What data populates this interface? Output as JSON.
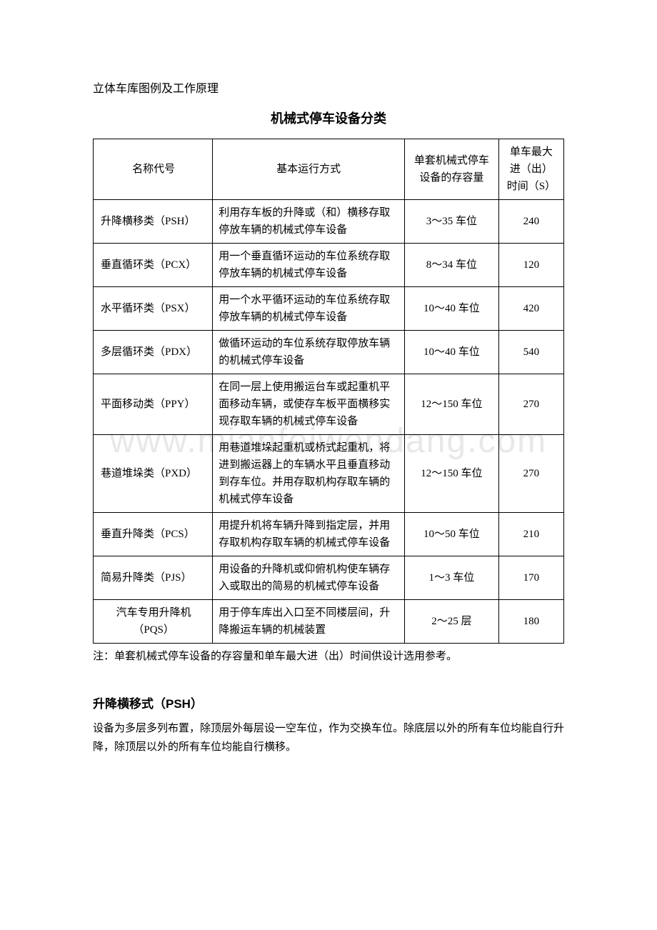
{
  "header": "立体车库图例及工作原理",
  "title": "机械式停车设备分类",
  "table": {
    "headers": {
      "name": "名称代号",
      "method": "基本运行方式",
      "capacity": "单套机械式停车设备的存容量",
      "time": "单车最大进（出）时间（S）"
    },
    "rows": [
      {
        "name": "升降横移类（PSH）",
        "method": "利用存车板的升降或（和）横移存取停放车辆的机械式停车设备",
        "capacity": "3～35 车位",
        "time": "240"
      },
      {
        "name": "垂直循环类（PCX）",
        "method": "用一个垂直循环运动的车位系统存取停放车辆的机械式停车设备",
        "capacity": "8～34 车位",
        "time": "120"
      },
      {
        "name": "水平循环类（PSX）",
        "method": "用一个水平循环运动的车位系统存取停放车辆的机械式停车设备",
        "capacity": "10～40 车位",
        "time": "420"
      },
      {
        "name": "多层循环类（PDX）",
        "method": "做循环运动的车位系统存取停放车辆的机械式停车设备",
        "capacity": "10～40 车位",
        "time": "540"
      },
      {
        "name": "平面移动类（PPY）",
        "method": "在同一层上使用搬运台车或起重机平面移动车辆，或使存车板平面横移实现存取车辆的机械式停车设备",
        "capacity": "12～150 车位",
        "time": "270"
      },
      {
        "name": "巷道堆垛类（PXD）",
        "method": "用巷道堆垛起重机或桥式起重机，将进到搬运器上的车辆水平且垂直移动到存车位。并用存取机构存取车辆的机械式停车设备",
        "capacity": "12～150 车位",
        "time": "270"
      },
      {
        "name": "垂直升降类（PCS）",
        "method": "用提升机将车辆升降到指定层，并用存取机构存取车辆的机械式停车设备",
        "capacity": "10～50 车位",
        "time": "210"
      },
      {
        "name": "简易升降类（PJS）",
        "method": "用设备的升降机或仰俯机构使车辆存入或取出的简易的机械式停车设备",
        "capacity": "1～3 车位",
        "time": "170"
      },
      {
        "name": "汽车专用升降机（PQS）",
        "name_center": true,
        "method": "用于停车库出入口至不同楼层间，升降搬运车辆的机械装置",
        "capacity": "2～25 层",
        "time": "180"
      }
    ]
  },
  "note": "注：单套机械式停车设备的存容量和单车最大进（出）时间供设计选用参考。",
  "section": {
    "title": "升降横移式（PSH）",
    "desc": "设备为多层多列布置，除顶层外每层设一空车位，作为交换车位。除底层以外的所有车位均能自行升降，除顶层以外的所有车位均能自行横移。"
  },
  "watermark": "www.mianfeiwendang.com"
}
